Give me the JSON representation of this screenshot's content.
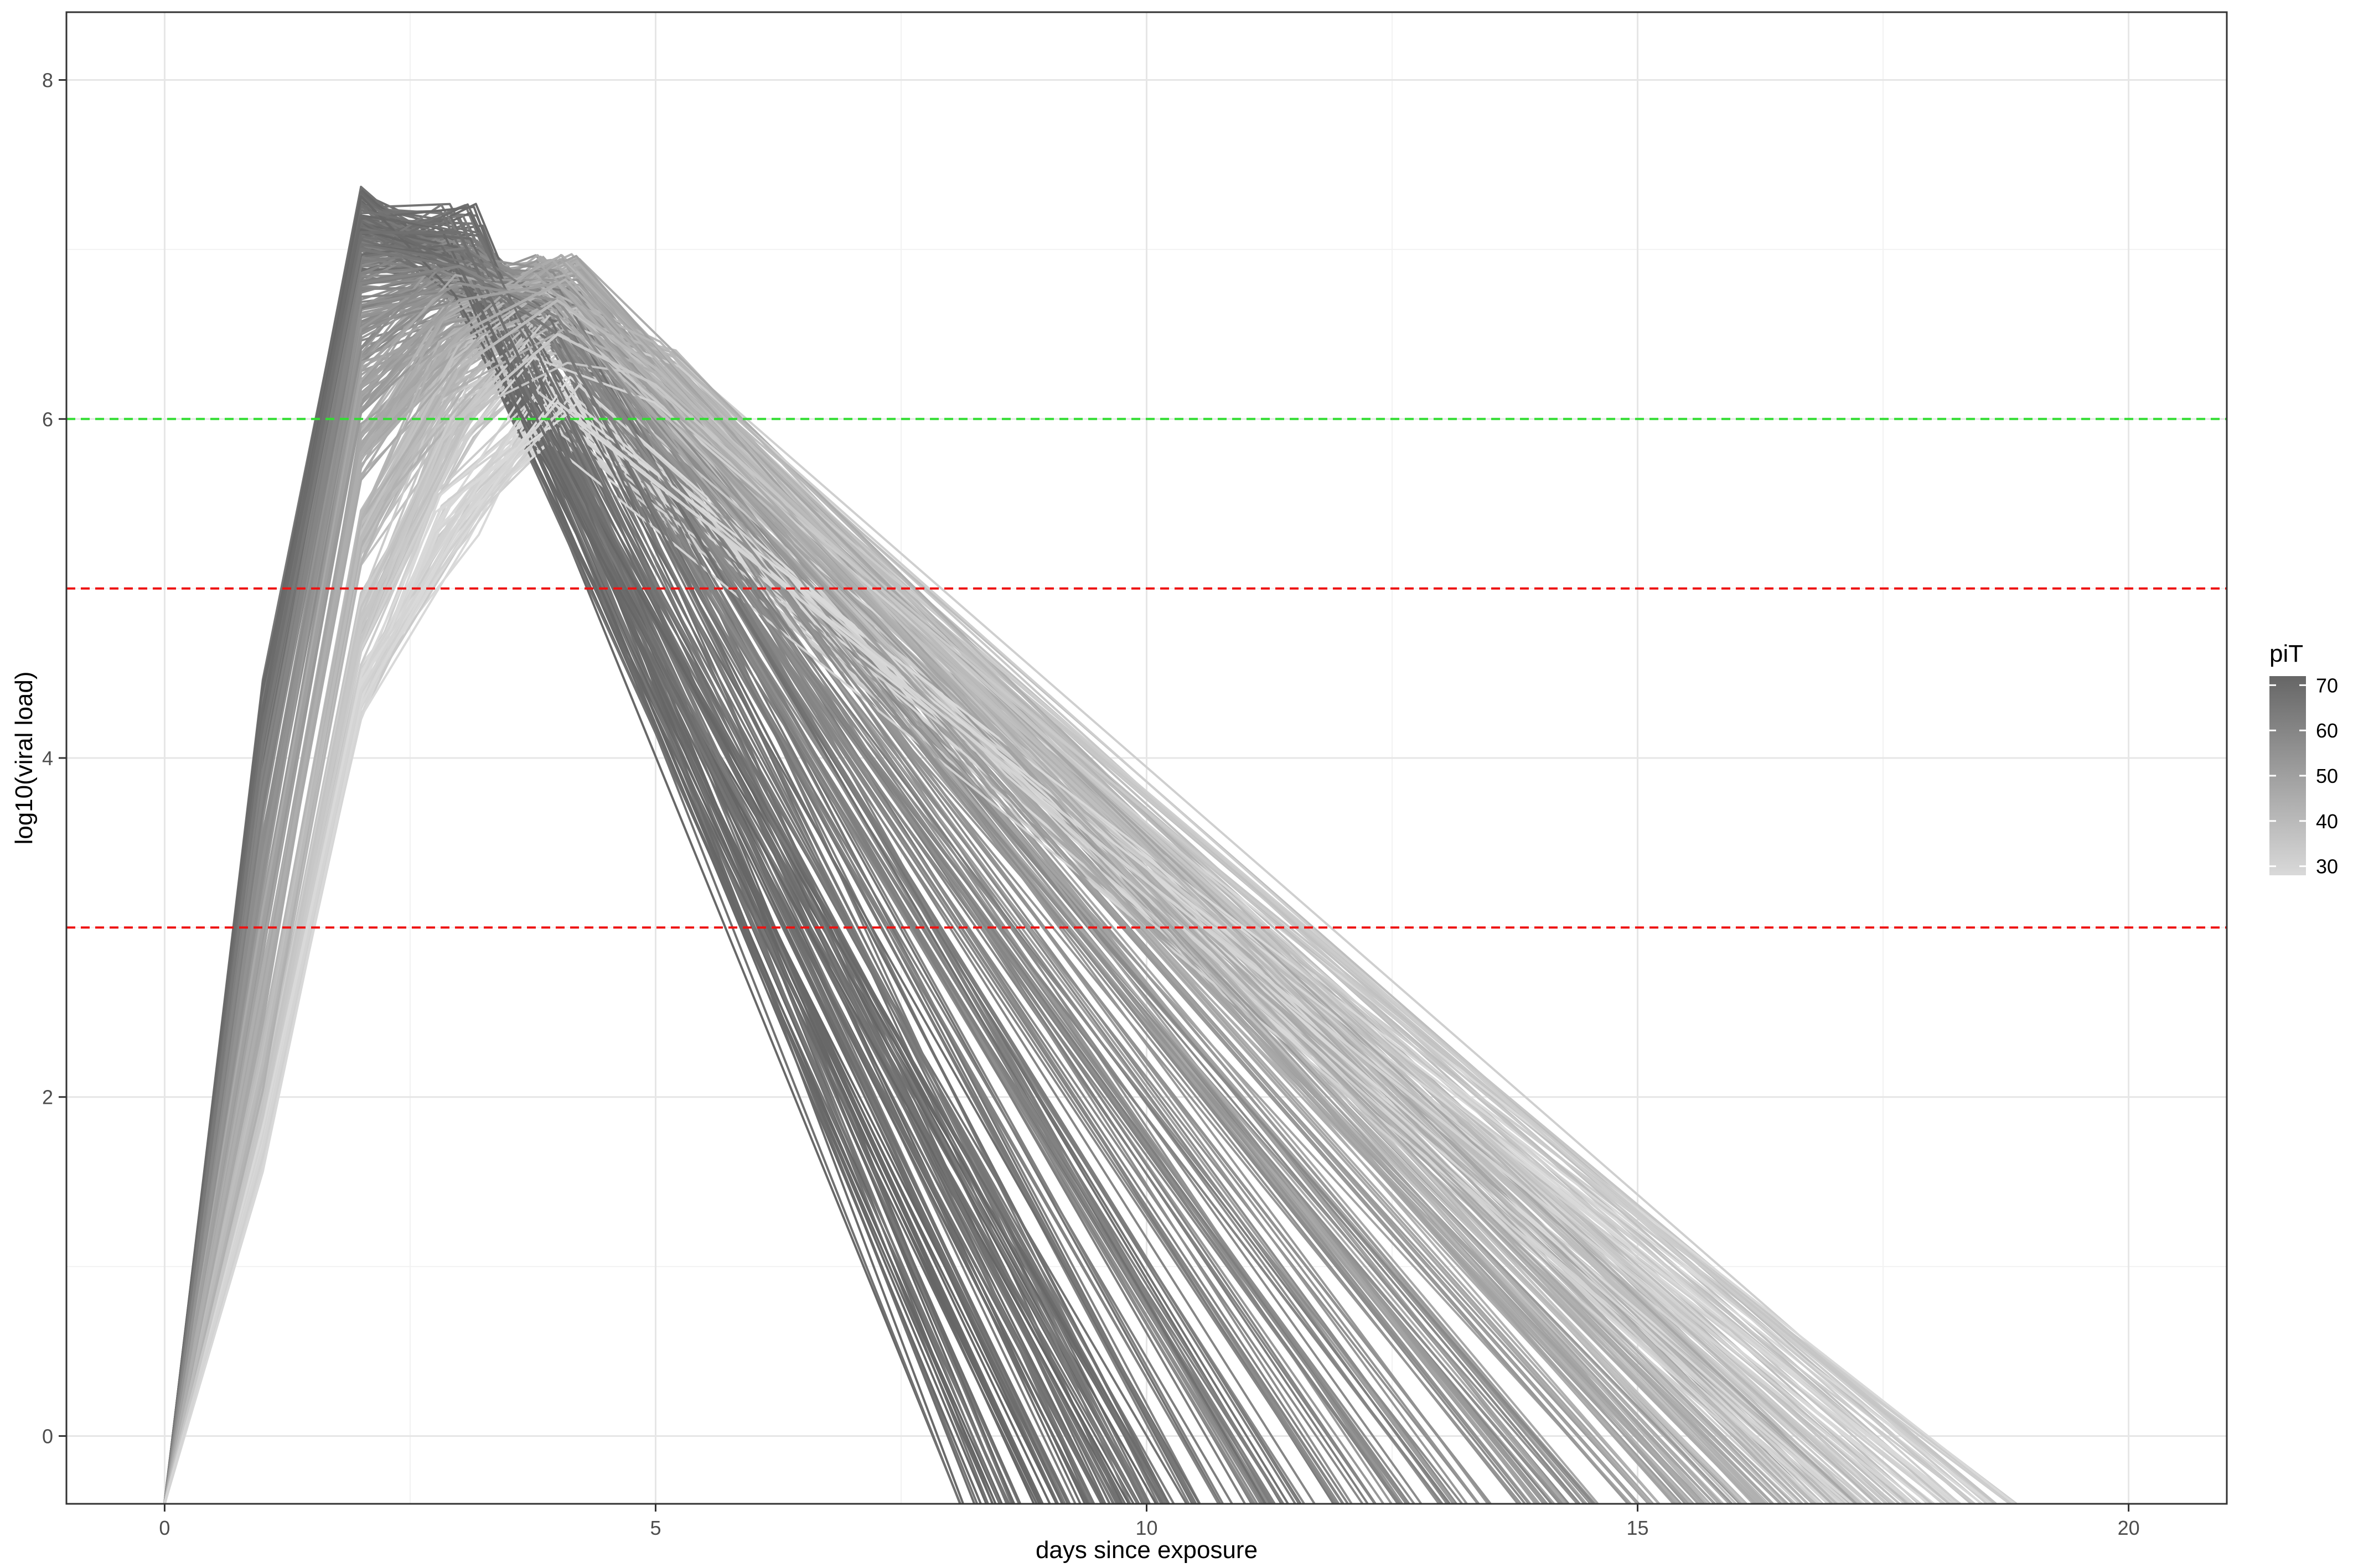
{
  "chart_data": {
    "type": "line",
    "title": "",
    "xlabel": "days since exposure",
    "ylabel": "log10(viral load)",
    "xlim": [
      -1,
      21
    ],
    "ylim": [
      -0.4,
      8.4
    ],
    "x_ticks": [
      0,
      5,
      10,
      15,
      20
    ],
    "x_tick_labels": [
      "0",
      "5",
      "10",
      "15",
      "20"
    ],
    "y_ticks": [
      0,
      2,
      4,
      6,
      8
    ],
    "y_tick_labels": [
      "0",
      "2",
      "4",
      "6",
      "8"
    ],
    "grid": true,
    "theme": "bw",
    "reference_lines": [
      {
        "axis": "y",
        "value": 6,
        "color": "#33dd33",
        "style": "dashed"
      },
      {
        "axis": "y",
        "value": 5,
        "color": "#ee1111",
        "style": "dashed"
      },
      {
        "axis": "y",
        "value": 3,
        "color": "#ee1111",
        "style": "dashed"
      }
    ],
    "legend": {
      "title": "piT",
      "placement": "right",
      "type": "colorbar",
      "range": [
        28,
        72
      ],
      "breaks": [
        30,
        40,
        50,
        60,
        70
      ],
      "break_labels": [
        "30",
        "40",
        "50",
        "60",
        "70"
      ],
      "color_low": "#d9d9d9",
      "color_high": "#666666"
    },
    "series_note_count": 400,
    "series": [
      {
        "piT": 70,
        "x": [
          0,
          1,
          2,
          3,
          9.4
        ],
        "y": [
          -0.4,
          4.3,
          7.2,
          6.9,
          -0.4
        ]
      },
      {
        "piT": 68,
        "x": [
          0,
          1,
          2,
          3,
          9.2
        ],
        "y": [
          -0.4,
          4.2,
          7.1,
          7.1,
          -0.4
        ]
      },
      {
        "piT": 65,
        "x": [
          0,
          1,
          2,
          3,
          4,
          10.5
        ],
        "y": [
          -0.4,
          4.1,
          7.0,
          6.9,
          6.5,
          -0.4
        ]
      },
      {
        "piT": 60,
        "x": [
          0,
          1,
          2,
          3,
          4,
          12.0
        ],
        "y": [
          -0.4,
          3.8,
          6.8,
          6.9,
          6.6,
          -0.4
        ]
      },
      {
        "piT": 55,
        "x": [
          0,
          1,
          2,
          3,
          4,
          13.5
        ],
        "y": [
          -0.4,
          3.4,
          6.5,
          6.8,
          6.7,
          -0.4
        ]
      },
      {
        "piT": 50,
        "x": [
          0,
          1,
          2,
          3,
          4,
          15.0
        ],
        "y": [
          -0.4,
          3.0,
          6.2,
          6.7,
          6.8,
          -0.4
        ]
      },
      {
        "piT": 45,
        "x": [
          0,
          1,
          2,
          3,
          4,
          16.2
        ],
        "y": [
          -0.4,
          2.6,
          5.8,
          6.5,
          6.8,
          -0.4
        ]
      },
      {
        "piT": 40,
        "x": [
          0,
          1,
          2,
          3,
          4,
          5,
          16.8
        ],
        "y": [
          -0.4,
          2.2,
          5.3,
          6.3,
          6.7,
          6.3,
          -0.4
        ]
      },
      {
        "piT": 35,
        "x": [
          0,
          1,
          2,
          3,
          4,
          5,
          17.6
        ],
        "y": [
          -0.4,
          1.9,
          4.8,
          6.0,
          6.5,
          6.2,
          -0.4
        ]
      },
      {
        "piT": 30,
        "x": [
          0,
          1,
          2,
          3,
          4,
          17.8
        ],
        "y": [
          -0.4,
          1.7,
          4.4,
          5.4,
          6.1,
          -0.4
        ]
      }
    ]
  }
}
